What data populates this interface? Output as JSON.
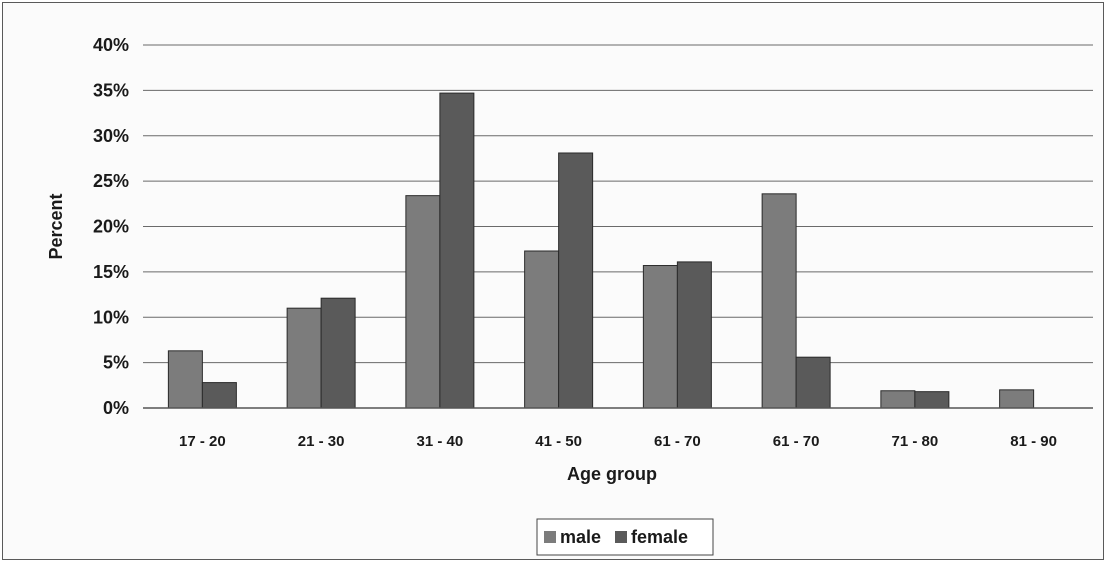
{
  "chart_data": {
    "type": "bar",
    "title": "",
    "xlabel": "Age group",
    "ylabel": "Percent",
    "ylim": [
      0,
      40
    ],
    "yticks": [
      "0%",
      "5%",
      "10%",
      "15%",
      "20%",
      "25%",
      "30%",
      "35%",
      "40%"
    ],
    "categories": [
      "17 - 20",
      "21 - 30",
      "31 - 40",
      "41 - 50",
      "61 - 70",
      "61 - 70",
      "71 - 80",
      "81 - 90"
    ],
    "series": [
      {
        "name": "male",
        "color": "#7c7c7c",
        "values": [
          6.3,
          11.0,
          23.4,
          17.3,
          15.7,
          23.6,
          1.9,
          2.0
        ]
      },
      {
        "name": "female",
        "color": "#5a5a5a",
        "values": [
          2.8,
          12.1,
          34.7,
          28.1,
          16.1,
          5.6,
          1.8,
          0
        ]
      }
    ],
    "grid": true,
    "legend": "bottom"
  }
}
